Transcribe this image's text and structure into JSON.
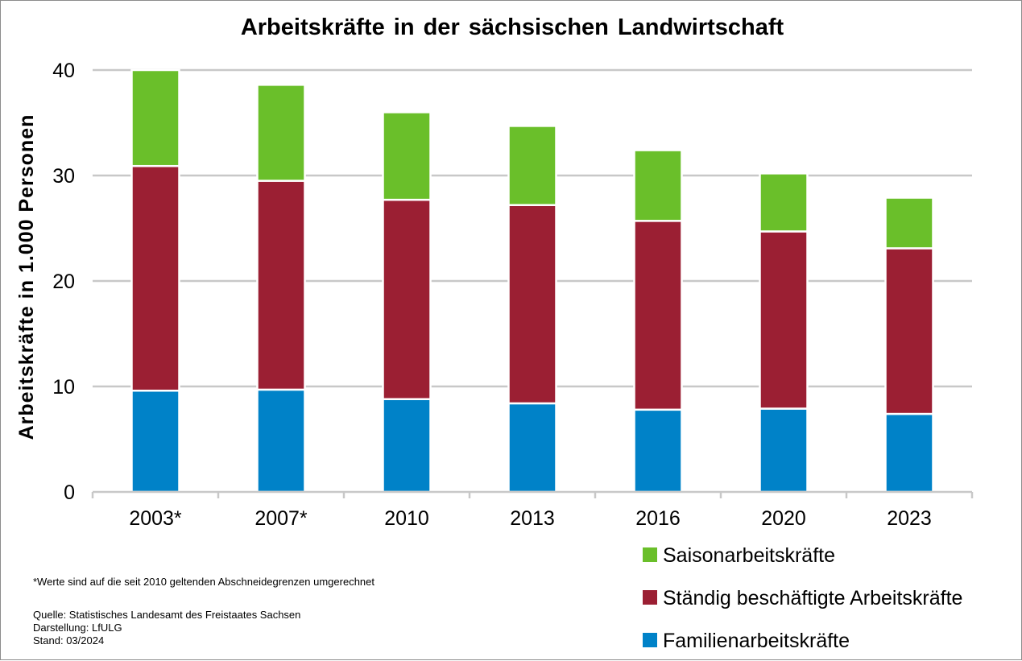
{
  "chart_data": {
    "type": "bar",
    "stacked": true,
    "title": "Arbeitskräfte in der sächsischen Landwirtschaft",
    "ylabel": "Arbeitskräfte in 1.000 Personen",
    "xlabel": "",
    "ylim": [
      0,
      40
    ],
    "yticks": [
      "0",
      "10",
      "20",
      "30",
      "40"
    ],
    "grid": true,
    "legend_position": "bottom-right",
    "categories": [
      "2003*",
      "2007*",
      "2010",
      "2013",
      "2016",
      "2020",
      "2023"
    ],
    "series": [
      {
        "name": "Familienarbeitskräfte",
        "color": "#0082c8",
        "values": [
          9.6,
          9.7,
          8.8,
          8.4,
          7.8,
          7.9,
          7.4
        ]
      },
      {
        "name": "Ständig beschäftigte Arbeitskräfte",
        "color": "#9b1f33",
        "values": [
          21.3,
          19.8,
          18.9,
          18.8,
          17.9,
          16.8,
          15.7
        ]
      },
      {
        "name": "Saisonarbeitskräfte",
        "color": "#6abf2a",
        "values": [
          9.1,
          9.1,
          8.3,
          7.5,
          6.7,
          5.5,
          4.8
        ]
      }
    ],
    "legend_order": [
      "Saisonarbeitskräfte",
      "Ständig beschäftigte Arbeitskräfte",
      "Familienarbeitskräfte"
    ]
  },
  "footnote": "*Werte sind auf die seit 2010 geltenden Abschneidegrenzen umgerechnet",
  "source_lines": [
    "Quelle: Statistisches Landesamt des Freistaates Sachsen",
    "Darstellung: LfULG",
    "Stand: 03/2024"
  ]
}
